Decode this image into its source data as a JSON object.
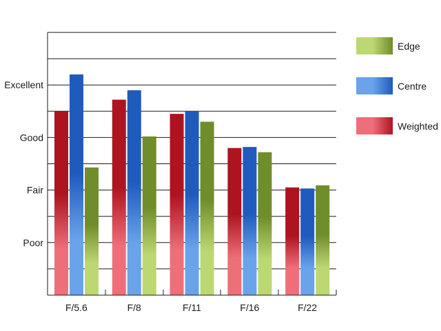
{
  "chart_data": {
    "type": "bar",
    "title": "",
    "xlabel": "",
    "ylabel": "",
    "categories": [
      "F/5.6",
      "F/8",
      "F/11",
      "F/16",
      "F/22"
    ],
    "y_tick_labels": [
      {
        "label": "Poor",
        "value": 1
      },
      {
        "label": "Fair",
        "value": 2
      },
      {
        "label": "Good",
        "value": 3
      },
      {
        "label": "Excellent",
        "value": 4
      }
    ],
    "ylim": [
      0,
      5
    ],
    "grid": true,
    "legend_position": "right",
    "series": [
      {
        "name": "Weighted",
        "values": [
          3.5,
          3.72,
          3.45,
          2.8,
          2.05
        ],
        "color_light": "#ee6f79",
        "color_dark": "#ad1420"
      },
      {
        "name": "Centre",
        "values": [
          4.2,
          3.9,
          3.5,
          2.82,
          2.03
        ],
        "color_light": "#6aa3ea",
        "color_dark": "#1f5bbd"
      },
      {
        "name": "Edge",
        "values": [
          2.43,
          3.02,
          3.3,
          2.72,
          2.09
        ],
        "color_light": "#bcd873",
        "color_dark": "#6f8d2a"
      }
    ],
    "legend_order": [
      "Edge",
      "Centre",
      "Weighted"
    ]
  }
}
